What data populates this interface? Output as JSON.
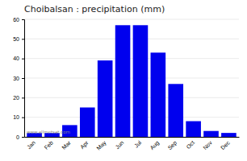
{
  "chart_data": {
    "type": "bar",
    "title": "Choibalsan : precipitation (mm)",
    "categories": [
      "Jan",
      "Feb",
      "Mar",
      "Apr",
      "May",
      "Jun",
      "Jul",
      "Aug",
      "Sep",
      "Oct",
      "Nov",
      "Dec"
    ],
    "values": [
      2,
      2,
      6,
      15,
      39,
      57,
      57,
      43,
      27,
      8,
      3,
      2
    ],
    "color": "#0000ee",
    "ylim": [
      0,
      60
    ],
    "yticks": [
      0,
      10,
      20,
      30,
      40,
      50,
      60
    ],
    "grid": true,
    "annotations": [
      "www.allmetsat.com"
    ]
  }
}
